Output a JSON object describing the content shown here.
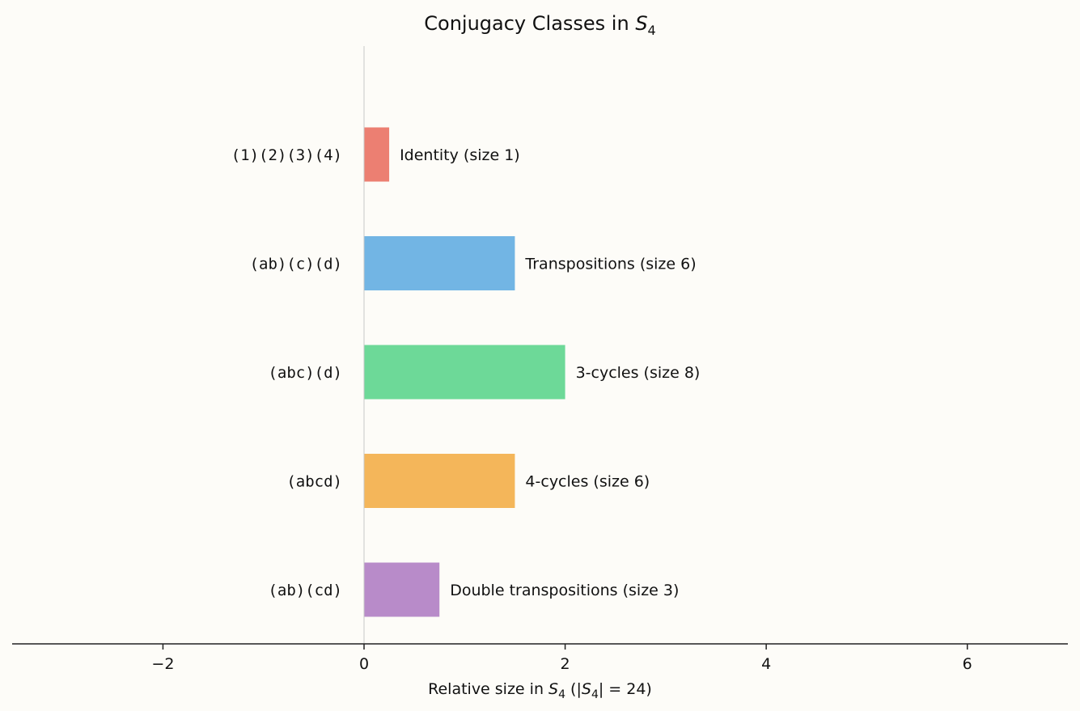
{
  "chart_data": {
    "type": "bar",
    "orientation": "horizontal",
    "title_main": "Conjugacy Classes in ",
    "title_math": "S",
    "title_sub": "4",
    "xlabel_prefix": "Relative size in ",
    "xlabel_math": "S",
    "xlabel_sub": "4",
    "xlabel_open": " (|",
    "xlabel_math2": "S",
    "xlabel_sub2": "4",
    "xlabel_close": "| = 24)",
    "xlim": [
      -3.5,
      7.0
    ],
    "xticks": [
      -2,
      0,
      2,
      4,
      6
    ],
    "xtick_labels": [
      "−2",
      "0",
      "2",
      "4",
      "6"
    ],
    "categories": [
      "(1)(2)(3)(4)",
      "(ab)(c)(d)",
      "(abc)(d)",
      "(abcd)",
      "(ab)(cd)"
    ],
    "values": [
      0.25,
      1.5,
      2.0,
      1.5,
      0.75
    ],
    "bar_labels": [
      "Identity (size 1)",
      "Transpositions (size 6)",
      "3-cycles (size 8)",
      "4-cycles (size 6)",
      "Double transpositions (size 3)"
    ],
    "colors": [
      "#ec7f72",
      "#72b5e4",
      "#6dd998",
      "#f4b65a",
      "#b88bc9"
    ],
    "grid": false,
    "legend": "none"
  }
}
